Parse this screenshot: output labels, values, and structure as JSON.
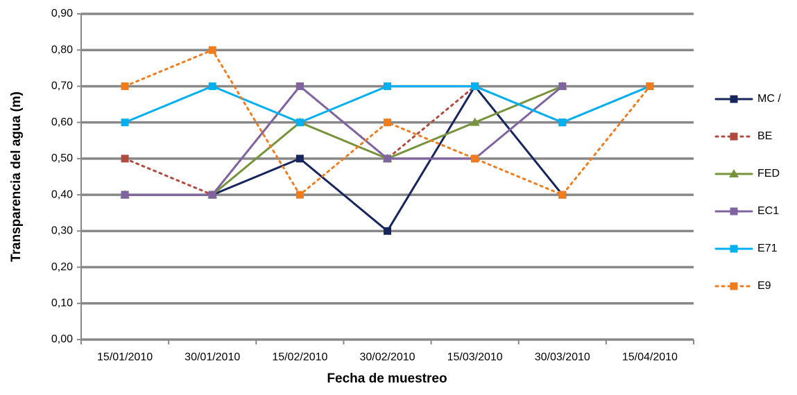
{
  "chart_data": {
    "type": "line",
    "x_label": "Fecha de muestreo",
    "y_label": "Transparencia del agua (m)",
    "categories": [
      "15/01/2010",
      "30/01/2010",
      "15/02/2010",
      "30/02/2010",
      "15/03/2010",
      "30/03/2010",
      "15/04/2010"
    ],
    "series": [
      {
        "name": "MC /",
        "color": "#17255e",
        "marker": "square",
        "dashed": false,
        "values": [
          0.4,
          0.4,
          0.5,
          0.3,
          0.7,
          0.4,
          null
        ]
      },
      {
        "name": "BE",
        "color": "#b04a3f",
        "marker": "square",
        "dashed": true,
        "values": [
          0.5,
          0.4,
          0.7,
          0.5,
          0.7,
          0.6,
          0.7
        ]
      },
      {
        "name": "FED",
        "color": "#77933c",
        "marker": "triangle",
        "dashed": false,
        "values": [
          0.4,
          0.4,
          0.6,
          0.5,
          0.6,
          0.7,
          null
        ]
      },
      {
        "name": "EC1",
        "color": "#8064a2",
        "marker": "square",
        "dashed": false,
        "values": [
          0.4,
          0.4,
          0.7,
          0.5,
          0.5,
          0.7,
          null
        ]
      },
      {
        "name": "E71",
        "color": "#00b0f0",
        "marker": "square",
        "dashed": false,
        "values": [
          0.6,
          0.7,
          0.6,
          0.7,
          0.7,
          0.6,
          0.7
        ]
      },
      {
        "name": "E9",
        "color": "#f07c1c",
        "marker": "square",
        "dashed": true,
        "values": [
          0.7,
          0.8,
          0.4,
          0.6,
          0.5,
          0.4,
          0.7
        ]
      }
    ],
    "ylim": [
      0,
      0.9
    ],
    "yticks": [
      {
        "value": 0,
        "label": "0,00"
      },
      {
        "value": 0.1,
        "label": "0,10"
      },
      {
        "value": 0.2,
        "label": "0,20"
      },
      {
        "value": 0.3,
        "label": "0,30"
      },
      {
        "value": 0.4,
        "label": "0,40"
      },
      {
        "value": 0.5,
        "label": "0,50"
      },
      {
        "value": 0.6,
        "label": "0,60"
      },
      {
        "value": 0.7,
        "label": "0,70"
      },
      {
        "value": 0.8,
        "label": "0,80"
      },
      {
        "value": 0.9,
        "label": "0,90"
      }
    ],
    "grid": true,
    "legend": "right"
  }
}
